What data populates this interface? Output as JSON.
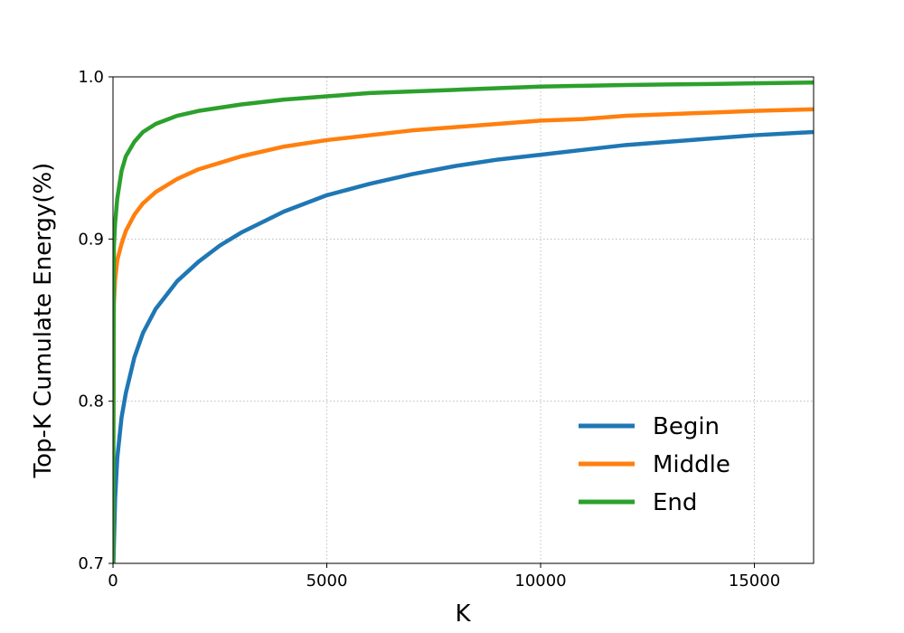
{
  "chart_data": {
    "type": "line",
    "title": "",
    "xlabel": "K",
    "ylabel": "Top-K Cumulate Energy(%)",
    "xlim": [
      0,
      16384
    ],
    "ylim": [
      0.7,
      1.0
    ],
    "x_ticks": [
      0,
      5000,
      10000,
      15000
    ],
    "x_tick_labels": [
      "0",
      "5000",
      "10000",
      "15000"
    ],
    "y_ticks": [
      0.7,
      0.8,
      0.9,
      1.0
    ],
    "y_tick_labels": [
      "0.7",
      "0.8",
      "0.9",
      "1.0"
    ],
    "grid": true,
    "legend_position": "lower-right",
    "series": [
      {
        "name": "Begin",
        "color": "#1f77b4",
        "x": [
          10,
          50,
          100,
          200,
          300,
          500,
          700,
          1000,
          1500,
          2000,
          2500,
          3000,
          4000,
          5000,
          6000,
          7000,
          8000,
          9000,
          10000,
          11000,
          12000,
          13000,
          14000,
          15000,
          16384
        ],
        "y": [
          0.7,
          0.74,
          0.765,
          0.79,
          0.805,
          0.827,
          0.842,
          0.857,
          0.874,
          0.886,
          0.896,
          0.904,
          0.917,
          0.927,
          0.934,
          0.94,
          0.945,
          0.949,
          0.952,
          0.955,
          0.958,
          0.96,
          0.962,
          0.964,
          0.966
        ]
      },
      {
        "name": "Middle",
        "color": "#ff7f0e",
        "x": [
          0,
          20,
          50,
          100,
          200,
          300,
          500,
          700,
          1000,
          1500,
          2000,
          3000,
          4000,
          5000,
          6000,
          7000,
          8000,
          9000,
          10000,
          11000,
          12000,
          13000,
          14000,
          15000,
          16384
        ],
        "y": [
          0.7,
          0.86,
          0.875,
          0.887,
          0.897,
          0.905,
          0.915,
          0.922,
          0.929,
          0.937,
          0.943,
          0.951,
          0.957,
          0.961,
          0.964,
          0.967,
          0.969,
          0.971,
          0.973,
          0.974,
          0.976,
          0.977,
          0.978,
          0.979,
          0.98
        ]
      },
      {
        "name": "End",
        "color": "#2ca02c",
        "x": [
          0,
          20,
          50,
          100,
          200,
          300,
          500,
          700,
          1000,
          1500,
          2000,
          3000,
          4000,
          5000,
          6000,
          7000,
          8000,
          9000,
          10000,
          11000,
          12000,
          13000,
          14000,
          15000,
          16384
        ],
        "y": [
          0.7,
          0.895,
          0.91,
          0.925,
          0.942,
          0.951,
          0.96,
          0.966,
          0.971,
          0.976,
          0.979,
          0.983,
          0.986,
          0.988,
          0.99,
          0.991,
          0.992,
          0.993,
          0.994,
          0.9945,
          0.995,
          0.9953,
          0.9956,
          0.996,
          0.9965
        ]
      }
    ]
  }
}
